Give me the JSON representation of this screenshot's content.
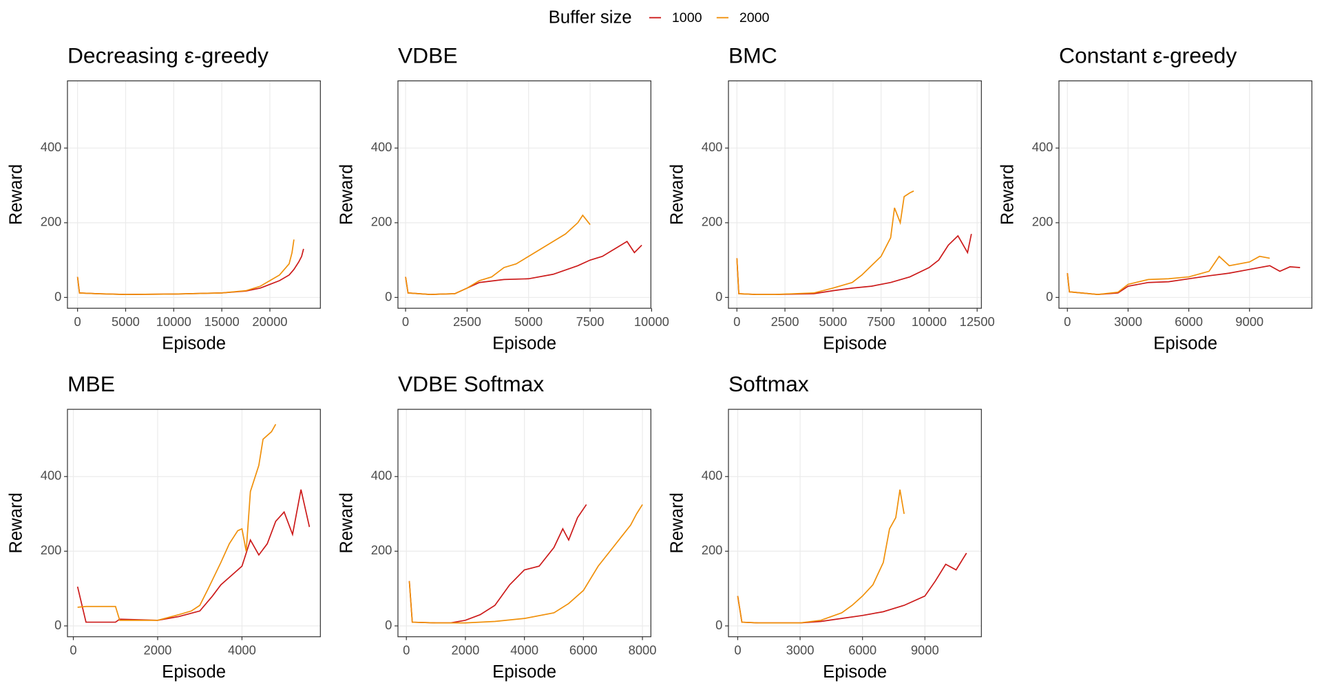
{
  "legend": {
    "title": "Buffer size"
  },
  "chart_data": [
    {
      "type": "line",
      "title": "Decreasing ε-greedy",
      "xlabel": "Episode",
      "ylabel": "Reward",
      "grid": true,
      "xlim": [
        -1050,
        25250
      ],
      "xticks": [
        0,
        5000,
        10000,
        15000,
        20000
      ],
      "ylim": [
        -29,
        580
      ],
      "yticks": [
        0,
        200,
        400
      ],
      "series": [
        {
          "name": "1000",
          "color": "#cc1a1a",
          "x": [
            0,
            200,
            2000,
            5000,
            10000,
            15000,
            17500,
            19000,
            20000,
            21000,
            22000,
            22500,
            23000,
            23300,
            23500
          ],
          "values": [
            55,
            12,
            10,
            8,
            9,
            12,
            17,
            25,
            35,
            45,
            60,
            75,
            95,
            110,
            130
          ]
        },
        {
          "name": "2000",
          "color": "#f0900a",
          "x": [
            0,
            200,
            2000,
            5000,
            10000,
            15000,
            17500,
            19000,
            20000,
            21000,
            21500,
            22000,
            22300,
            22500
          ],
          "values": [
            55,
            12,
            10,
            8,
            9,
            12,
            18,
            30,
            45,
            60,
            75,
            90,
            120,
            155
          ]
        }
      ]
    },
    {
      "type": "line",
      "title": "VDBE",
      "xlabel": "Episode",
      "ylabel": "Reward",
      "grid": true,
      "xlim": [
        -310,
        9970
      ],
      "xticks": [
        0,
        2500,
        5000,
        7500,
        10000
      ],
      "ylim": [
        -29,
        580
      ],
      "yticks": [
        0,
        200,
        400
      ],
      "series": [
        {
          "name": "1000",
          "color": "#cc1a1a",
          "x": [
            0,
            100,
            1000,
            2000,
            2500,
            3000,
            4000,
            5000,
            6000,
            7000,
            7500,
            8000,
            8500,
            9000,
            9300,
            9600
          ],
          "values": [
            55,
            12,
            8,
            10,
            25,
            40,
            48,
            50,
            62,
            85,
            100,
            110,
            130,
            150,
            120,
            140
          ]
        },
        {
          "name": "2000",
          "color": "#f0900a",
          "x": [
            0,
            100,
            1000,
            2000,
            2500,
            3000,
            3500,
            4000,
            4500,
            5000,
            5500,
            6000,
            6500,
            7000,
            7200,
            7500
          ],
          "values": [
            55,
            12,
            8,
            10,
            25,
            45,
            55,
            80,
            90,
            110,
            130,
            150,
            170,
            200,
            220,
            195
          ]
        }
      ]
    },
    {
      "type": "line",
      "title": "BMC",
      "xlabel": "Episode",
      "ylabel": "Reward",
      "grid": true,
      "xlim": [
        -440,
        12720
      ],
      "xticks": [
        0,
        2500,
        5000,
        7500,
        10000,
        12500
      ],
      "ylim": [
        -29,
        580
      ],
      "yticks": [
        0,
        200,
        400
      ],
      "series": [
        {
          "name": "1000",
          "color": "#cc1a1a",
          "x": [
            0,
            100,
            1000,
            2000,
            4000,
            5000,
            6000,
            7000,
            8000,
            9000,
            10000,
            10500,
            11000,
            11500,
            12000,
            12200
          ],
          "values": [
            105,
            10,
            8,
            8,
            10,
            18,
            25,
            30,
            40,
            55,
            80,
            100,
            140,
            165,
            120,
            170
          ]
        },
        {
          "name": "2000",
          "color": "#f0900a",
          "x": [
            0,
            100,
            1000,
            2000,
            4000,
            5000,
            6000,
            6500,
            7000,
            7500,
            8000,
            8200,
            8500,
            8700,
            9000,
            9200
          ],
          "values": [
            105,
            10,
            8,
            8,
            12,
            25,
            40,
            60,
            85,
            110,
            160,
            240,
            200,
            270,
            280,
            285
          ]
        }
      ]
    },
    {
      "type": "line",
      "title": "Constant ε-greedy",
      "xlabel": "Episode",
      "ylabel": "Reward",
      "grid": true,
      "xlim": [
        -417,
        12083
      ],
      "xticks": [
        0,
        3000,
        6000,
        9000
      ],
      "ylim": [
        -29,
        580
      ],
      "yticks": [
        0,
        200,
        400
      ],
      "series": [
        {
          "name": "1000",
          "color": "#cc1a1a",
          "x": [
            0,
            100,
            1500,
            2500,
            3000,
            4000,
            5000,
            6000,
            7000,
            8000,
            9000,
            10000,
            10500,
            11000,
            11500
          ],
          "values": [
            65,
            15,
            8,
            12,
            30,
            40,
            42,
            50,
            58,
            65,
            75,
            85,
            70,
            82,
            80
          ]
        },
        {
          "name": "2000",
          "color": "#f0900a",
          "x": [
            0,
            100,
            1500,
            2500,
            3000,
            4000,
            5000,
            6000,
            7000,
            7500,
            8000,
            9000,
            9500,
            10000
          ],
          "values": [
            65,
            15,
            8,
            14,
            35,
            48,
            50,
            55,
            70,
            110,
            85,
            95,
            110,
            105
          ]
        }
      ]
    },
    {
      "type": "line",
      "title": "MBE",
      "xlabel": "Episode",
      "ylabel": "Reward",
      "grid": true,
      "xlim": [
        -140,
        5860
      ],
      "xticks": [
        0,
        2000,
        4000
      ],
      "ylim": [
        -29,
        580
      ],
      "yticks": [
        0,
        200,
        400
      ],
      "series": [
        {
          "name": "1000",
          "color": "#cc1a1a",
          "x": [
            100,
            300,
            1000,
            1100,
            2000,
            2500,
            3000,
            3300,
            3500,
            3800,
            4000,
            4200,
            4400,
            4600,
            4800,
            5000,
            5200,
            5400,
            5600
          ],
          "values": [
            105,
            10,
            10,
            18,
            15,
            25,
            40,
            80,
            110,
            140,
            160,
            230,
            190,
            220,
            280,
            305,
            245,
            365,
            265
          ]
        },
        {
          "name": "2000",
          "color": "#f0900a",
          "x": [
            100,
            300,
            1000,
            1100,
            2000,
            2500,
            2800,
            3000,
            3200,
            3500,
            3700,
            3900,
            4000,
            4100,
            4200,
            4400,
            4500,
            4700,
            4800
          ],
          "values": [
            50,
            52,
            52,
            15,
            15,
            30,
            40,
            55,
            100,
            170,
            220,
            255,
            260,
            200,
            360,
            430,
            500,
            520,
            540
          ]
        }
      ]
    },
    {
      "type": "line",
      "title": "VDBE Softmax",
      "xlabel": "Episode",
      "ylabel": "Reward",
      "grid": true,
      "xlim": [
        -286,
        8286
      ],
      "xticks": [
        0,
        2000,
        4000,
        6000,
        8000
      ],
      "ylim": [
        -29,
        580
      ],
      "yticks": [
        0,
        200,
        400
      ],
      "series": [
        {
          "name": "1000",
          "color": "#cc1a1a",
          "x": [
            100,
            200,
            1000,
            1500,
            2000,
            2500,
            3000,
            3500,
            4000,
            4500,
            5000,
            5300,
            5500,
            5800,
            6100
          ],
          "values": [
            120,
            10,
            8,
            8,
            15,
            30,
            55,
            110,
            150,
            160,
            210,
            260,
            230,
            290,
            325
          ]
        },
        {
          "name": "2000",
          "color": "#f0900a",
          "x": [
            100,
            200,
            1000,
            2000,
            3000,
            4000,
            5000,
            5500,
            6000,
            6500,
            7000,
            7300,
            7600,
            7800,
            8000
          ],
          "values": [
            120,
            10,
            8,
            8,
            12,
            20,
            35,
            60,
            95,
            160,
            210,
            240,
            270,
            300,
            325
          ]
        }
      ]
    },
    {
      "type": "line",
      "title": "Softmax",
      "xlabel": "Episode",
      "ylabel": "Reward",
      "grid": true,
      "xlim": [
        -446,
        11716
      ],
      "xticks": [
        0,
        3000,
        6000,
        9000
      ],
      "ylim": [
        -29,
        580
      ],
      "yticks": [
        0,
        200,
        400
      ],
      "series": [
        {
          "name": "1000",
          "color": "#cc1a1a",
          "x": [
            0,
            200,
            1000,
            3000,
            4000,
            5000,
            6000,
            7000,
            8000,
            9000,
            9500,
            10000,
            10500,
            11000
          ],
          "values": [
            80,
            10,
            8,
            8,
            12,
            20,
            28,
            38,
            55,
            80,
            120,
            165,
            150,
            195
          ]
        },
        {
          "name": "2000",
          "color": "#f0900a",
          "x": [
            0,
            200,
            1000,
            3000,
            4000,
            5000,
            5500,
            6000,
            6500,
            7000,
            7300,
            7600,
            7800,
            8000
          ],
          "values": [
            80,
            10,
            8,
            8,
            15,
            35,
            55,
            80,
            110,
            170,
            260,
            290,
            365,
            300
          ]
        }
      ]
    }
  ]
}
